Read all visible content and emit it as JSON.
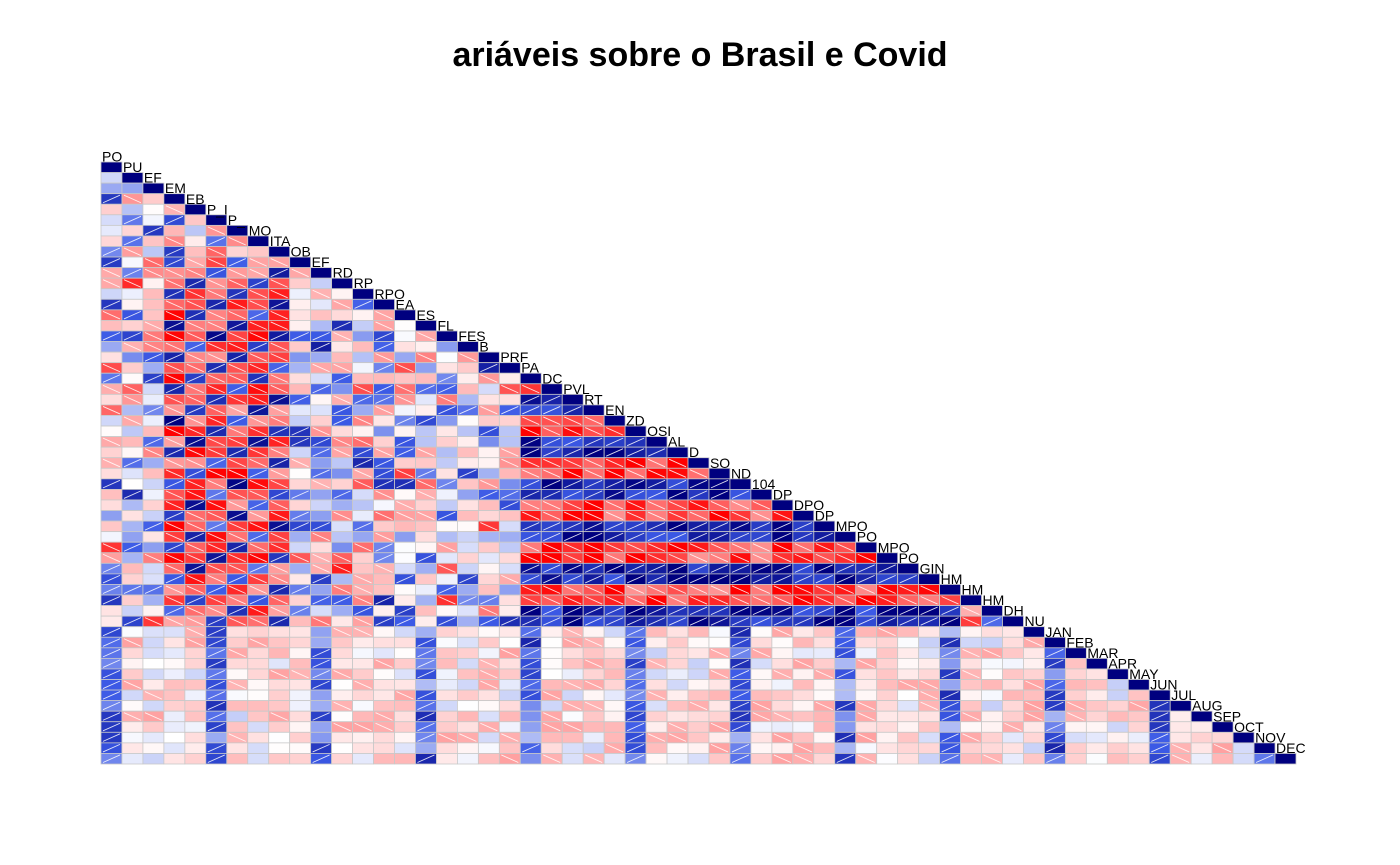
{
  "chart_data": {
    "type": "heatmap",
    "title": "ariáveis sobre o Brasil e Covid",
    "layout": "lower-triangle correlogram",
    "color_scale": {
      "negative": "#FF0000",
      "zero": "#FFFFFF",
      "positive": "#00007F"
    },
    "grid_color": "#C8C8C8",
    "variables": [
      "PO",
      "PU",
      "EF",
      "EM",
      "EB",
      "P_I",
      "P_",
      "MO",
      "ITA",
      "OB",
      "EF",
      "RD",
      "RP",
      "RPO",
      "EA",
      "ES",
      "FL",
      "FES",
      "B",
      "PRF",
      "PA",
      "DC",
      "PVL",
      "RT",
      "EN",
      "ZD",
      "OSI",
      "AL",
      "D",
      "SO",
      "ND",
      "104",
      "DP",
      "DPO",
      "DP",
      "MPO",
      "PO",
      "MPO",
      "PO",
      "GIN",
      "HM",
      "HM",
      "HM",
      "DH",
      "NU",
      "JAN",
      "FEB",
      "MAR",
      "APR",
      "MAY",
      "JUN",
      "JUL",
      "AUG",
      "SEP",
      "OCT",
      "NOV",
      "DEC"
    ]
  }
}
